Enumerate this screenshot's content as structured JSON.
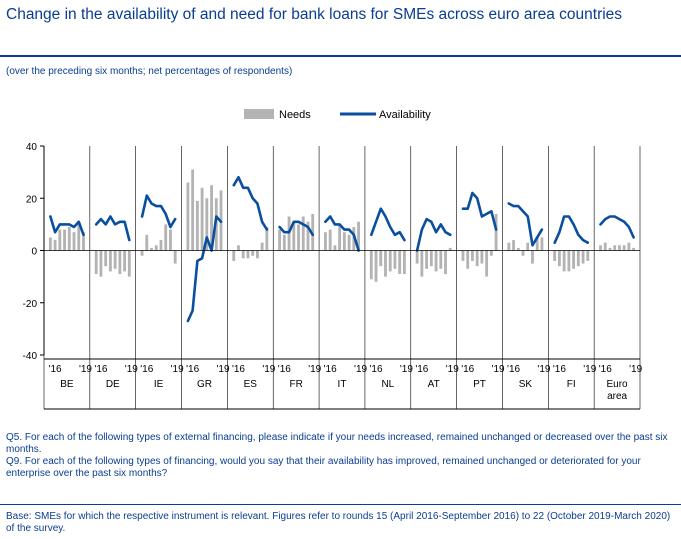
{
  "title": "Change in the availability of and need for bank loans for SMEs across euro area countries",
  "subtitle": "(over the preceding six months; net percentages of respondents)",
  "notes": {
    "q5": "Q5. For each of the following types of external financing, please indicate if your needs increased, remained unchanged or decreased over the past six months.",
    "q9": "Q9. For each of the following types of financing, would you say that their availability has improved, remained unchanged or deteriorated for your enterprise over the past six months?",
    "base": "Base: SMEs for which the respective instrument is relevant. Figures refer to rounds 15 (April 2016-September 2016) to 22 (October 2019-March 2020) of the survey."
  },
  "colors": {
    "needs": "#b3b3b3",
    "availability": "#0a4ea0",
    "text_blue": "#0a3d91"
  },
  "chart_data": {
    "type": "bar",
    "ylim": [
      -40,
      40
    ],
    "yticks": [
      -40,
      -20,
      0,
      20,
      40
    ],
    "tick_labels": [
      "'16",
      "'19"
    ],
    "legend": {
      "placement": "top-center",
      "needs": "Needs",
      "availability": "Availability"
    },
    "groups": [
      {
        "name": "BE",
        "needs": [
          5,
          4,
          8,
          8,
          9,
          7,
          10,
          7
        ],
        "availability": [
          13,
          7,
          10,
          10,
          10,
          9,
          11,
          6
        ]
      },
      {
        "name": "DE",
        "needs": [
          -9,
          -10,
          -6,
          -8,
          -7,
          -9,
          -8,
          -10
        ],
        "availability": [
          10,
          12,
          10,
          13,
          10,
          11,
          11,
          4
        ]
      },
      {
        "name": "IE",
        "needs": [
          -2,
          6,
          1,
          2,
          4,
          10,
          8,
          -5
        ],
        "availability": [
          13,
          21,
          18,
          17,
          17,
          14,
          9,
          12
        ]
      },
      {
        "name": "GR",
        "needs": [
          26,
          31,
          19,
          24,
          20,
          25,
          20,
          23
        ],
        "availability": [
          -27,
          -23,
          -4,
          -3,
          5,
          0,
          13,
          11
        ]
      },
      {
        "name": "ES",
        "needs": [
          -4,
          2,
          -3,
          -3,
          -2,
          -3,
          3,
          9
        ],
        "availability": [
          25,
          28,
          24,
          24,
          20,
          18,
          11,
          8
        ]
      },
      {
        "name": "FR",
        "needs": [
          8,
          6,
          13,
          11,
          10,
          13,
          11,
          14
        ],
        "availability": [
          9,
          7,
          7,
          11,
          11,
          10,
          9,
          6
        ]
      },
      {
        "name": "IT",
        "needs": [
          7,
          8,
          2,
          10,
          7,
          6,
          9,
          11
        ],
        "availability": [
          11,
          13,
          10,
          10,
          8,
          8,
          6,
          0
        ]
      },
      {
        "name": "NL",
        "needs": [
          -11,
          -12,
          -6,
          -10,
          -8,
          -7,
          -9,
          -9
        ],
        "availability": [
          6,
          11,
          16,
          13,
          9,
          6,
          7,
          4
        ]
      },
      {
        "name": "AT",
        "needs": [
          -5,
          -10,
          -7,
          -6,
          -8,
          -7,
          -9,
          1
        ],
        "availability": [
          0,
          8,
          12,
          11,
          7,
          10,
          7,
          6
        ]
      },
      {
        "name": "PT",
        "needs": [
          -4,
          -7,
          -4,
          -6,
          -5,
          -10,
          -2,
          14
        ],
        "availability": [
          16,
          16,
          22,
          20,
          13,
          14,
          15,
          8
        ]
      },
      {
        "name": "SK",
        "needs": [
          3,
          4,
          1,
          -2,
          3,
          -5,
          5,
          5
        ],
        "availability": [
          18,
          17,
          17,
          15,
          13,
          2,
          5,
          8
        ]
      },
      {
        "name": "FI",
        "needs": [
          -4,
          -6,
          -8,
          -8,
          -7,
          -6,
          -5,
          -4
        ],
        "availability": [
          3,
          7,
          13,
          13,
          10,
          6,
          4,
          3
        ]
      },
      {
        "name": "Euro area",
        "name_lines": [
          "Euro",
          "area"
        ],
        "needs": [
          2,
          3,
          1,
          2,
          2,
          2,
          3,
          1
        ],
        "availability": [
          10,
          12,
          13,
          13,
          12,
          11,
          9,
          5
        ]
      }
    ]
  }
}
